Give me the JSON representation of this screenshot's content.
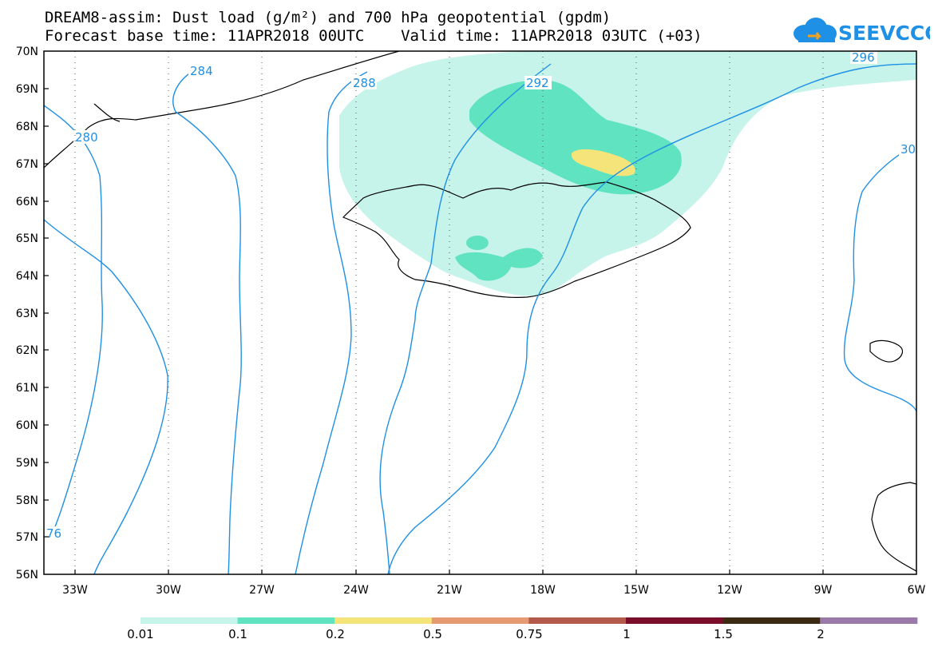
{
  "header": {
    "title_line1": "DREAM8-assim: Dust load (g/m²) and 700 hPa geopotential (gpdm)",
    "title_line2": "Forecast base time: 11APR2018 00UTC    Valid time: 11APR2018 03UTC (+03)"
  },
  "logo": {
    "text": "SEEVCCC",
    "icon": "cloud-logo-icon",
    "color": "#1e90e6"
  },
  "map": {
    "lat_labels": [
      "70N",
      "69N",
      "68N",
      "67N",
      "66N",
      "65N",
      "64N",
      "63N",
      "62N",
      "61N",
      "60N",
      "59N",
      "58N",
      "57N",
      "56N"
    ],
    "lon_labels": [
      "33W",
      "30W",
      "27W",
      "24W",
      "21W",
      "18W",
      "15W",
      "12W",
      "9W",
      "6W"
    ],
    "contour_labels": [
      "284",
      "280",
      "288",
      "292",
      "296",
      "30",
      "76"
    ],
    "contour_color": "#1e90e6"
  },
  "colorbar": {
    "labels": [
      "0.01",
      "0.1",
      "0.2",
      "0.5",
      "0.75",
      "1",
      "1.5",
      "2"
    ],
    "colors": [
      "#c6f3ea",
      "#5fe3c0",
      "#f5e47a",
      "#e59a72",
      "#b45a4c",
      "#7a0e2a",
      "#3d2a14",
      "#9a7aa8"
    ]
  }
}
